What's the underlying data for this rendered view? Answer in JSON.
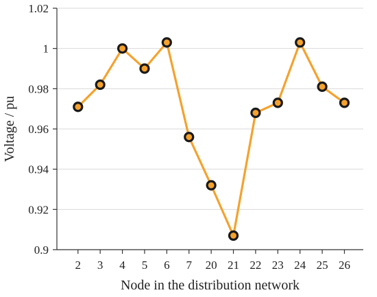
{
  "chart_data": {
    "type": "line",
    "title": "",
    "xlabel": "Node in the distribution network",
    "ylabel": "Voltage / pu",
    "categories": [
      "2",
      "3",
      "4",
      "5",
      "6",
      "7",
      "20",
      "21",
      "22",
      "23",
      "24",
      "25",
      "26"
    ],
    "series": [
      {
        "values": [
          0.971,
          0.982,
          1.0,
          0.99,
          1.003,
          0.956,
          0.932,
          0.907,
          0.968,
          0.973,
          1.003,
          0.981,
          0.973
        ]
      }
    ],
    "ylim": [
      0.9,
      1.02
    ],
    "yticks": [
      0.9,
      0.92,
      0.94,
      0.96,
      0.98,
      1,
      1.02
    ],
    "ytick_labels": [
      "0.9",
      "0.92",
      "0.94",
      "0.96",
      "0.98",
      "1",
      "1.02"
    ],
    "grid": "horizontal",
    "colors": {
      "line": "#f4a22d",
      "marker_edge": "#1a1a1a",
      "marker_fill": "#f4a22d"
    }
  }
}
